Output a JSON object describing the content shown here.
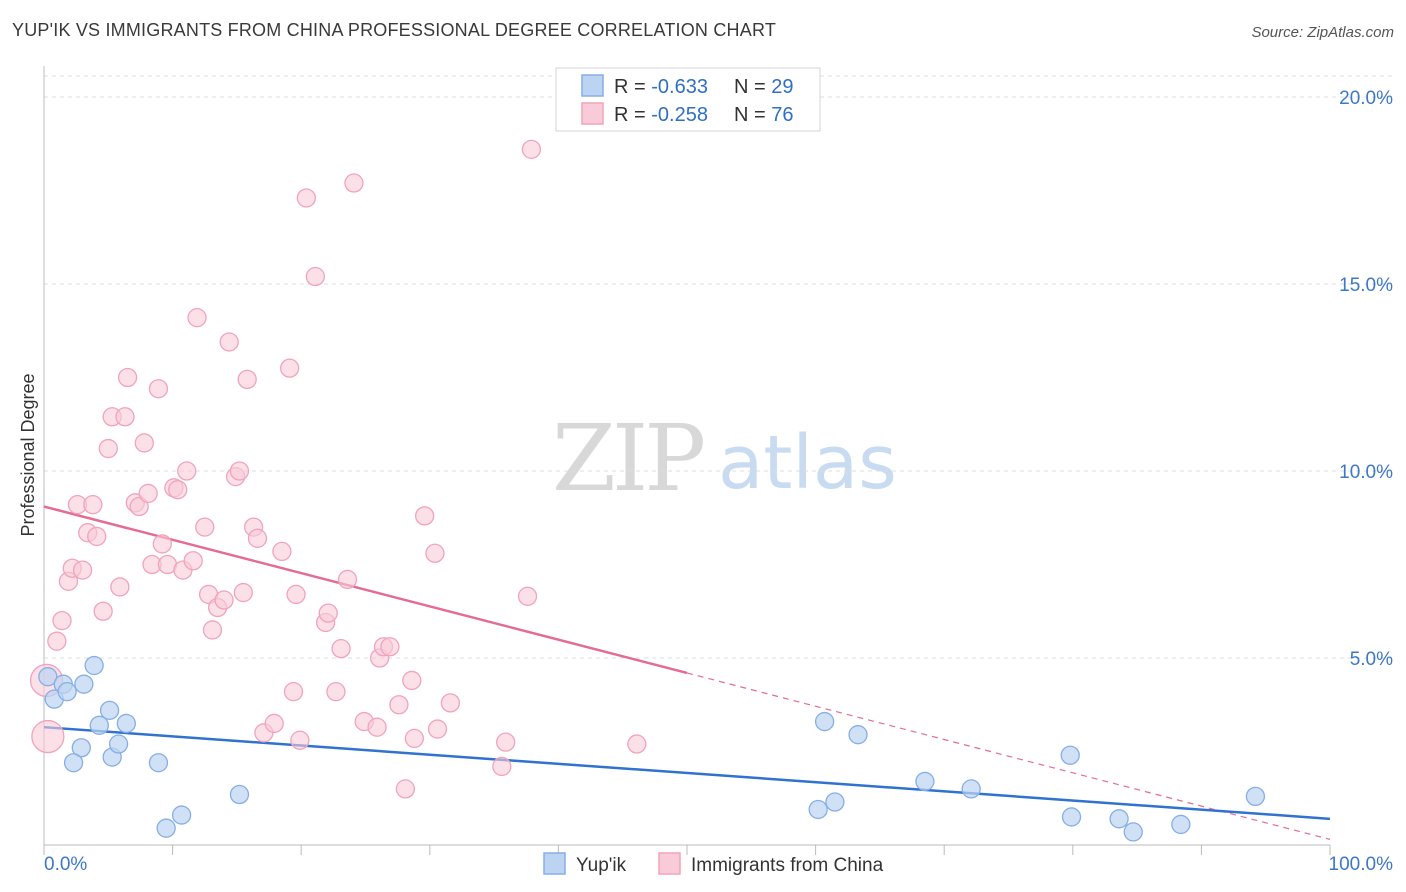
{
  "header": {
    "title": "YUP'IK VS IMMIGRANTS FROM CHINA PROFESSIONAL DEGREE CORRELATION CHART",
    "source": "Source: ZipAtlas.com"
  },
  "watermark": {
    "zip": "ZIP",
    "atlas": "atlas"
  },
  "legend_top": [
    {
      "r_label": "R = ",
      "r_value": "-0.633",
      "n_label": "N = ",
      "n_value": "29"
    },
    {
      "r_label": "R = ",
      "r_value": "-0.258",
      "n_label": "N = ",
      "n_value": "76"
    }
  ],
  "legend_bottom": [
    "Yup'ik",
    "Immigrants from China"
  ],
  "colors": {
    "blue_fill": "#bcd4f2",
    "blue_stroke": "#86aee6",
    "blue_line": "#2f72cf",
    "pink_fill": "#f9cbd9",
    "pink_stroke": "#f2a3bb",
    "pink_line": "#e46b94",
    "tick_text": "#3d78c7",
    "grid": "#dddddd"
  },
  "chart_data": {
    "type": "scatter",
    "title": "YUP'IK VS IMMIGRANTS FROM CHINA PROFESSIONAL DEGREE CORRELATION CHART",
    "xlabel": "",
    "ylabel": "Professional Degree",
    "xlim": [
      0,
      100
    ],
    "ylim": [
      0,
      20.5
    ],
    "x_ticks": [
      0,
      100
    ],
    "x_tick_labels": [
      "0.0%",
      "100.0%"
    ],
    "y_ticks": [
      5,
      10,
      15,
      20
    ],
    "y_tick_labels": [
      "5.0%",
      "10.0%",
      "15.0%",
      "20.0%"
    ],
    "grid": true,
    "series": [
      {
        "name": "Yup'ik",
        "r": -0.633,
        "n": 29,
        "trend": {
          "x0": 0,
          "y0": 3.15,
          "x1": 100,
          "y1": 0.7
        },
        "points": [
          {
            "x": 0.3,
            "y": 4.5
          },
          {
            "x": 0.8,
            "y": 3.9
          },
          {
            "x": 1.5,
            "y": 4.3
          },
          {
            "x": 1.8,
            "y": 4.1
          },
          {
            "x": 3.1,
            "y": 4.3
          },
          {
            "x": 3.9,
            "y": 4.8
          },
          {
            "x": 2.9,
            "y": 2.6
          },
          {
            "x": 2.3,
            "y": 2.2
          },
          {
            "x": 4.3,
            "y": 3.2
          },
          {
            "x": 5.1,
            "y": 3.6
          },
          {
            "x": 5.3,
            "y": 2.35
          },
          {
            "x": 5.8,
            "y": 2.7
          },
          {
            "x": 6.4,
            "y": 3.25
          },
          {
            "x": 8.9,
            "y": 2.2
          },
          {
            "x": 9.5,
            "y": 0.45
          },
          {
            "x": 10.7,
            "y": 0.8
          },
          {
            "x": 15.2,
            "y": 1.35
          },
          {
            "x": 60.7,
            "y": 3.3
          },
          {
            "x": 63.3,
            "y": 2.95
          },
          {
            "x": 60.2,
            "y": 0.95
          },
          {
            "x": 61.5,
            "y": 1.15
          },
          {
            "x": 68.5,
            "y": 1.7
          },
          {
            "x": 72.1,
            "y": 1.5
          },
          {
            "x": 79.8,
            "y": 2.4
          },
          {
            "x": 79.9,
            "y": 0.75
          },
          {
            "x": 83.6,
            "y": 0.7
          },
          {
            "x": 84.7,
            "y": 0.35
          },
          {
            "x": 88.4,
            "y": 0.55
          },
          {
            "x": 94.2,
            "y": 1.3
          }
        ]
      },
      {
        "name": "Immigrants from China",
        "r": -0.258,
        "n": 76,
        "trend": {
          "x0": 0,
          "y0": 9.05,
          "x1": 50,
          "y1": 4.6
        },
        "trend_dashed": {
          "x0": 50,
          "y0": 4.6,
          "x1": 100,
          "y1": 0.15
        },
        "points": [
          {
            "x": 0.2,
            "y": 4.4
          },
          {
            "x": 0.3,
            "y": 2.9
          },
          {
            "x": 1.0,
            "y": 5.45
          },
          {
            "x": 1.4,
            "y": 6.0
          },
          {
            "x": 1.9,
            "y": 7.05
          },
          {
            "x": 2.2,
            "y": 7.4
          },
          {
            "x": 2.6,
            "y": 9.1
          },
          {
            "x": 3.0,
            "y": 7.35
          },
          {
            "x": 3.4,
            "y": 8.35
          },
          {
            "x": 3.8,
            "y": 9.1
          },
          {
            "x": 4.1,
            "y": 8.25
          },
          {
            "x": 4.6,
            "y": 6.25
          },
          {
            "x": 5.0,
            "y": 10.6
          },
          {
            "x": 5.3,
            "y": 11.45
          },
          {
            "x": 5.9,
            "y": 6.9
          },
          {
            "x": 6.3,
            "y": 11.45
          },
          {
            "x": 6.5,
            "y": 12.5
          },
          {
            "x": 7.1,
            "y": 9.15
          },
          {
            "x": 7.4,
            "y": 9.05
          },
          {
            "x": 7.8,
            "y": 10.75
          },
          {
            "x": 8.1,
            "y": 9.4
          },
          {
            "x": 8.4,
            "y": 7.5
          },
          {
            "x": 8.9,
            "y": 12.2
          },
          {
            "x": 9.2,
            "y": 8.05
          },
          {
            "x": 9.6,
            "y": 7.5
          },
          {
            "x": 10.1,
            "y": 9.55
          },
          {
            "x": 10.4,
            "y": 9.5
          },
          {
            "x": 10.8,
            "y": 7.35
          },
          {
            "x": 11.1,
            "y": 10.0
          },
          {
            "x": 11.6,
            "y": 7.6
          },
          {
            "x": 11.9,
            "y": 14.1
          },
          {
            "x": 12.5,
            "y": 8.5
          },
          {
            "x": 12.8,
            "y": 6.7
          },
          {
            "x": 13.1,
            "y": 5.75
          },
          {
            "x": 13.5,
            "y": 6.35
          },
          {
            "x": 14.0,
            "y": 6.55
          },
          {
            "x": 14.4,
            "y": 13.45
          },
          {
            "x": 14.9,
            "y": 9.85
          },
          {
            "x": 15.2,
            "y": 10.0
          },
          {
            "x": 15.5,
            "y": 6.75
          },
          {
            "x": 15.8,
            "y": 12.45
          },
          {
            "x": 16.3,
            "y": 8.5
          },
          {
            "x": 16.6,
            "y": 8.2
          },
          {
            "x": 17.1,
            "y": 3.0
          },
          {
            "x": 17.9,
            "y": 3.25
          },
          {
            "x": 18.5,
            "y": 7.85
          },
          {
            "x": 19.1,
            "y": 12.75
          },
          {
            "x": 19.4,
            "y": 4.1
          },
          {
            "x": 19.6,
            "y": 6.7
          },
          {
            "x": 19.9,
            "y": 2.8
          },
          {
            "x": 20.4,
            "y": 17.3
          },
          {
            "x": 21.1,
            "y": 15.2
          },
          {
            "x": 21.9,
            "y": 5.95
          },
          {
            "x": 22.1,
            "y": 6.2
          },
          {
            "x": 22.7,
            "y": 4.1
          },
          {
            "x": 23.1,
            "y": 5.25
          },
          {
            "x": 23.6,
            "y": 7.1
          },
          {
            "x": 24.1,
            "y": 17.7
          },
          {
            "x": 24.9,
            "y": 3.3
          },
          {
            "x": 25.9,
            "y": 3.15
          },
          {
            "x": 26.1,
            "y": 5.0
          },
          {
            "x": 26.4,
            "y": 5.3
          },
          {
            "x": 26.9,
            "y": 5.3
          },
          {
            "x": 27.6,
            "y": 3.75
          },
          {
            "x": 28.1,
            "y": 1.5
          },
          {
            "x": 28.6,
            "y": 4.4
          },
          {
            "x": 28.8,
            "y": 2.85
          },
          {
            "x": 29.6,
            "y": 8.8
          },
          {
            "x": 30.4,
            "y": 7.8
          },
          {
            "x": 30.6,
            "y": 3.1
          },
          {
            "x": 31.6,
            "y": 3.8
          },
          {
            "x": 35.6,
            "y": 2.1
          },
          {
            "x": 35.9,
            "y": 2.75
          },
          {
            "x": 37.6,
            "y": 6.65
          },
          {
            "x": 37.9,
            "y": 18.6
          },
          {
            "x": 46.1,
            "y": 2.7
          }
        ]
      }
    ]
  }
}
